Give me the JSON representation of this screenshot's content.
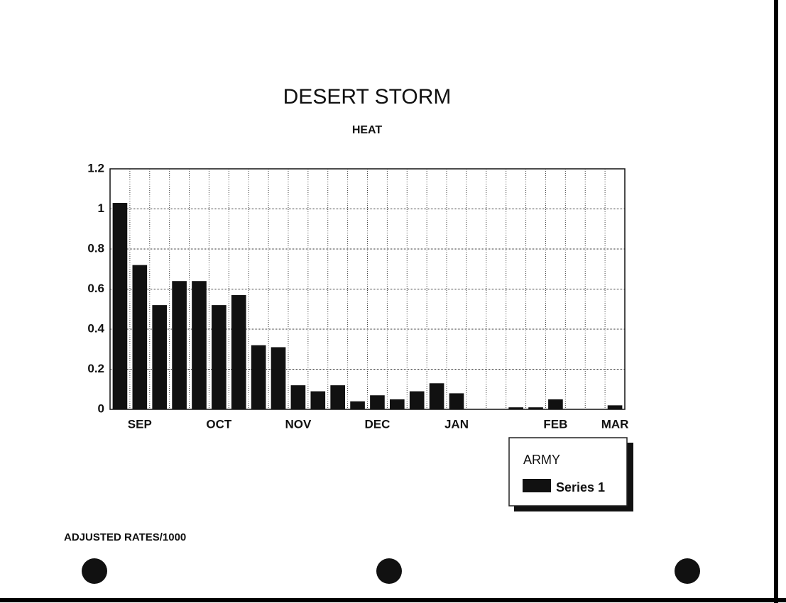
{
  "chart_data": {
    "type": "bar",
    "title": "DESERT STORM",
    "subtitle": "HEAT",
    "categories": [
      null,
      "SEP",
      null,
      null,
      null,
      "OCT",
      null,
      null,
      null,
      "NOV",
      null,
      null,
      null,
      "DEC",
      null,
      null,
      null,
      "JAN",
      null,
      null,
      null,
      null,
      "FEB",
      null,
      null,
      "MAR"
    ],
    "series": [
      {
        "name": "Series 1",
        "color": "#111111",
        "values": [
          1.03,
          0.72,
          0.52,
          0.64,
          0.64,
          0.52,
          0.57,
          0.32,
          0.31,
          0.12,
          0.09,
          0.12,
          0.04,
          0.07,
          0.05,
          0.09,
          0.13,
          0.08,
          0,
          0,
          0.01,
          0.01,
          0.05,
          0,
          0,
          0.02
        ]
      }
    ],
    "legend_title": "ARMY",
    "note": "ADJUSTED RATES/1000",
    "ylim": [
      0,
      1.2
    ],
    "yticks": [
      0,
      0.2,
      0.4,
      0.6,
      0.8,
      1,
      1.2
    ],
    "grid": true
  }
}
